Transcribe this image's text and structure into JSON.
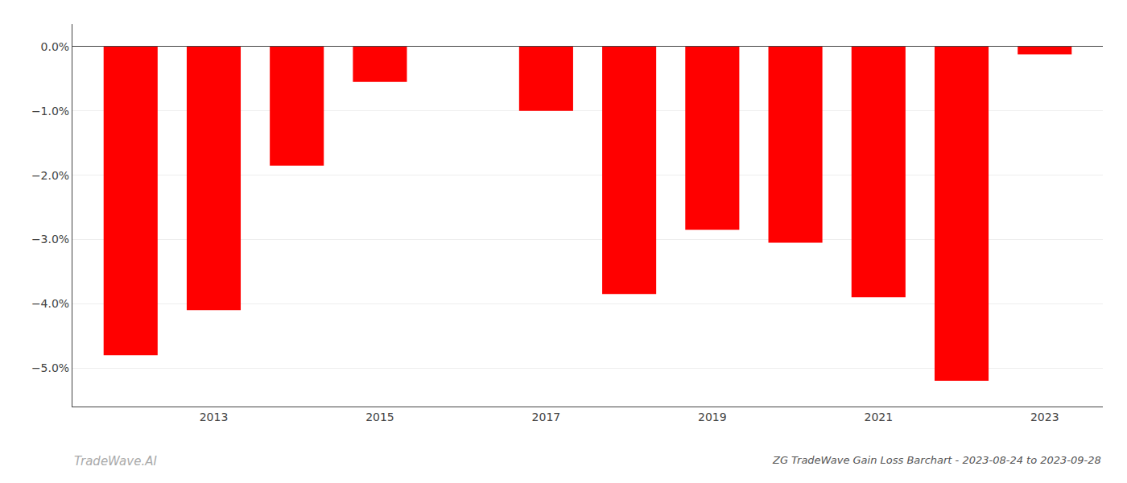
{
  "chart_data": {
    "type": "bar",
    "title": "ZG TradeWave Gain Loss Barchart - 2023-08-24 to 2023-09-28",
    "x": [
      2012,
      2013,
      2014,
      2015,
      2016,
      2017,
      2018,
      2019,
      2020,
      2021,
      2022,
      2023
    ],
    "values": [
      -4.8,
      -4.1,
      -1.85,
      -0.55,
      null,
      -1.0,
      -3.85,
      -2.85,
      -3.05,
      -3.9,
      -5.2,
      -0.12
    ],
    "color": "#ff0000",
    "xlim": [
      2011.3,
      2023.7
    ],
    "xticks": [
      2013,
      2015,
      2017,
      2019,
      2021,
      2023
    ],
    "ylim": [
      -5.6,
      0.35
    ],
    "yticks": [
      {
        "value": 0.0,
        "label": "0.0%"
      },
      {
        "value": -1.0,
        "label": "−1.0%"
      },
      {
        "value": -2.0,
        "label": "−2.0%"
      },
      {
        "value": -3.0,
        "label": "−3.0%"
      },
      {
        "value": -4.0,
        "label": "−4.0%"
      },
      {
        "value": -5.0,
        "label": "−5.0%"
      }
    ],
    "grid": true,
    "annotations": [
      "TradeWave.AI"
    ]
  }
}
